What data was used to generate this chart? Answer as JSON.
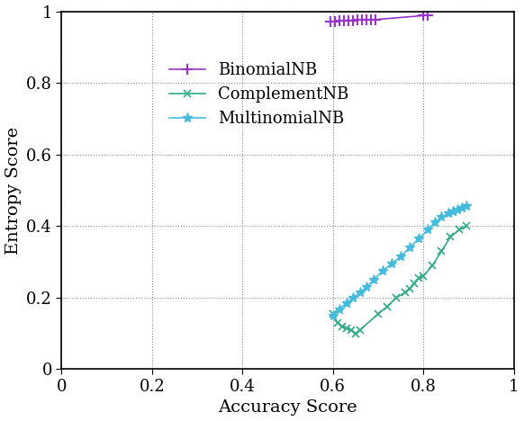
{
  "xlabel": "Accuracy Score",
  "ylabel": "Entropy Score",
  "xlim": [
    0,
    1
  ],
  "ylim": [
    0,
    1
  ],
  "xticks": [
    0,
    0.2,
    0.4,
    0.6,
    0.8,
    1.0
  ],
  "yticks": [
    0,
    0.2,
    0.4,
    0.6,
    0.8,
    1.0
  ],
  "binomial_color": "#9933cc",
  "complement_color": "#33aa88",
  "multinomial_color": "#44bbdd",
  "binomial_x": [
    0.595,
    0.605,
    0.615,
    0.625,
    0.635,
    0.645,
    0.655,
    0.665,
    0.675,
    0.685,
    0.695,
    0.8,
    0.81
  ],
  "binomial_y": [
    0.97,
    0.972,
    0.973,
    0.974,
    0.975,
    0.975,
    0.976,
    0.977,
    0.977,
    0.977,
    0.977,
    0.988,
    0.99
  ],
  "complement_x": [
    0.6,
    0.61,
    0.62,
    0.63,
    0.64,
    0.65,
    0.66,
    0.7,
    0.72,
    0.74,
    0.76,
    0.77,
    0.78,
    0.79,
    0.8,
    0.82,
    0.84,
    0.86,
    0.88,
    0.895
  ],
  "complement_y": [
    0.155,
    0.13,
    0.12,
    0.115,
    0.11,
    0.1,
    0.11,
    0.155,
    0.175,
    0.2,
    0.215,
    0.225,
    0.24,
    0.255,
    0.26,
    0.29,
    0.33,
    0.37,
    0.39,
    0.4
  ],
  "multinomial_x": [
    0.6,
    0.615,
    0.63,
    0.645,
    0.66,
    0.675,
    0.69,
    0.71,
    0.73,
    0.75,
    0.77,
    0.79,
    0.81,
    0.825,
    0.84,
    0.855,
    0.865,
    0.875,
    0.885,
    0.895
  ],
  "multinomial_y": [
    0.15,
    0.168,
    0.185,
    0.2,
    0.215,
    0.23,
    0.25,
    0.275,
    0.295,
    0.315,
    0.34,
    0.365,
    0.39,
    0.41,
    0.425,
    0.435,
    0.44,
    0.445,
    0.45,
    0.455
  ],
  "legend_labels": [
    "BinomialNB",
    "ComplementNB",
    "MultinomialNB"
  ],
  "axis_fontsize": 14,
  "tick_fontsize": 13,
  "legend_fontsize": 13
}
